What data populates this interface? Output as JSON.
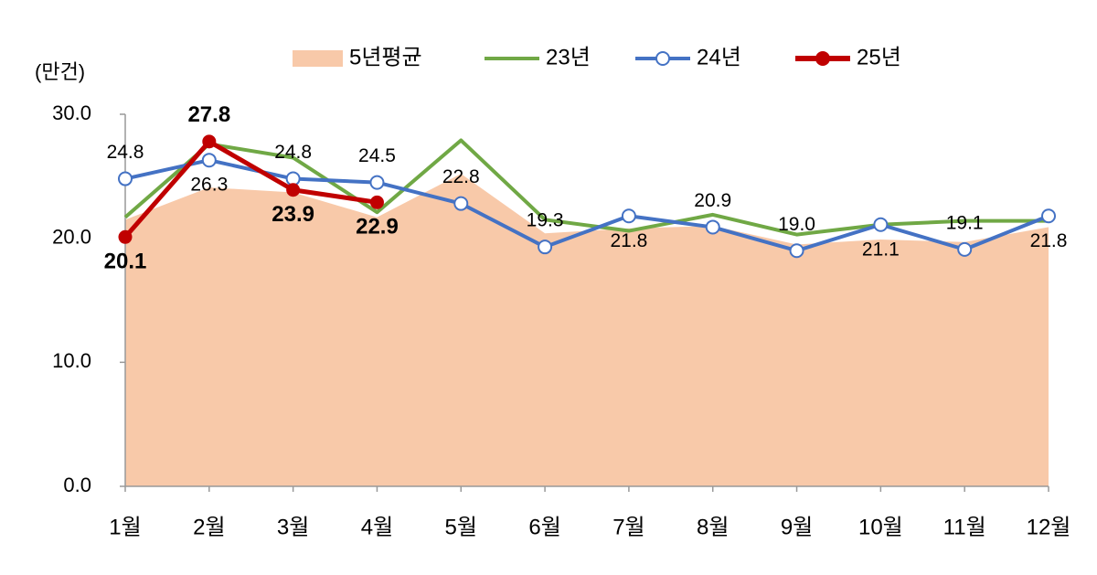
{
  "chart_data": {
    "type": "line",
    "y_unit_label": "(만건)",
    "categories": [
      "1월",
      "2월",
      "3월",
      "4월",
      "5월",
      "6월",
      "7월",
      "8월",
      "9월",
      "10월",
      "11월",
      "12월"
    ],
    "ylim": [
      0,
      30
    ],
    "yticks": [
      {
        "value": 0,
        "label": "0.0"
      },
      {
        "value": 10,
        "label": "10.0"
      },
      {
        "value": 20,
        "label": "20.0"
      },
      {
        "value": 30,
        "label": "30.0"
      }
    ],
    "series": [
      {
        "name": "5년평균",
        "kind": "area",
        "color": "#f8c9a9",
        "values": [
          21.5,
          24.1,
          23.7,
          21.7,
          25.2,
          20.4,
          20.8,
          21.0,
          19.5,
          19.9,
          19.7,
          20.9
        ]
      },
      {
        "name": "23년",
        "kind": "line",
        "color": "#70a845",
        "values": [
          21.7,
          27.6,
          26.5,
          22.1,
          27.9,
          21.5,
          20.6,
          21.9,
          20.3,
          21.1,
          21.4,
          21.4
        ]
      },
      {
        "name": "24년",
        "kind": "line",
        "marker": "open",
        "color": "#4472c4",
        "values": [
          24.8,
          26.3,
          24.8,
          24.5,
          22.8,
          19.3,
          21.8,
          20.9,
          19.0,
          21.1,
          19.1,
          21.8
        ],
        "value_labels": [
          "24.8",
          "26.3",
          "24.8",
          "24.5",
          "22.8",
          "19.3",
          "21.8",
          "20.9",
          "19.0",
          "21.1",
          "19.1",
          "21.8"
        ]
      },
      {
        "name": "25년",
        "kind": "line",
        "marker": "filled",
        "color": "#c00000",
        "values": [
          20.1,
          27.8,
          23.9,
          22.9,
          null,
          null,
          null,
          null,
          null,
          null,
          null,
          null
        ],
        "value_labels": [
          "20.1",
          "27.8",
          "23.9",
          "22.9",
          null,
          null,
          null,
          null,
          null,
          null,
          null,
          null
        ]
      }
    ]
  }
}
